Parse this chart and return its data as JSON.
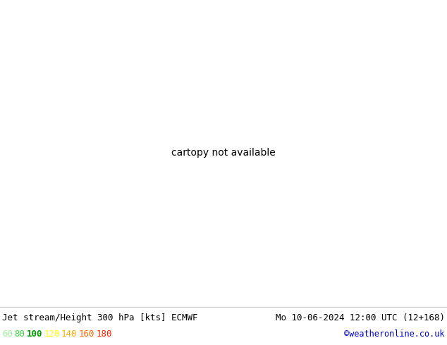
{
  "title_left": "Jet stream/Height 300 hPa [kts] ECMWF",
  "title_right": "Mo 10-06-2024 12:00 UTC (12+168)",
  "credit": "©weatheronline.co.uk",
  "legend_values": [
    60,
    80,
    100,
    120,
    140,
    160,
    180
  ],
  "legend_colors": [
    "#99ee99",
    "#44cc44",
    "#009900",
    "#ffff00",
    "#ffaa00",
    "#ff6600",
    "#ff2200"
  ],
  "ocean_color": "#e8f0e8",
  "land_color": "#c8e8b8",
  "jet_colors": {
    "60": "#b8eeb8",
    "80": "#66cc66",
    "100": "#009900",
    "120": "#ffff00",
    "140": "#ffaa00",
    "160": "#ff6600",
    "180": "#ff2200"
  },
  "contour_color": "#000000",
  "title_fontsize": 9.5,
  "credit_color": "#0000cc",
  "figsize": [
    6.34,
    4.9
  ],
  "dpi": 100,
  "map_extent": [
    -65,
    50,
    25,
    80
  ]
}
